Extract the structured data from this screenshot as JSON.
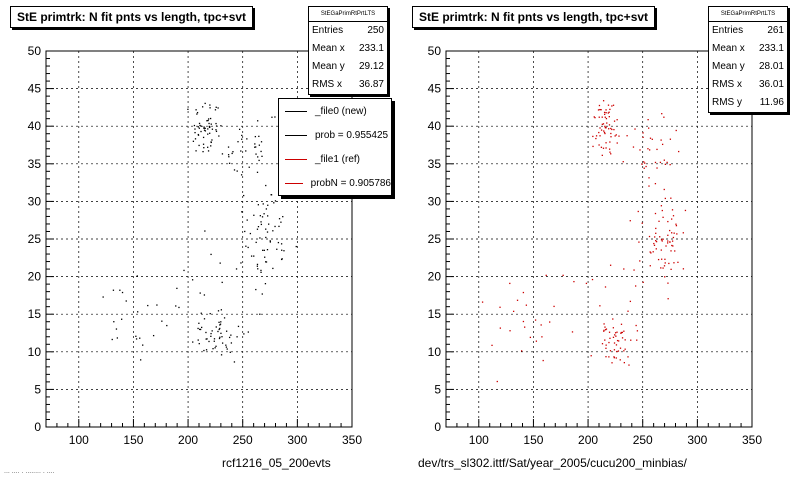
{
  "chart_data": [
    {
      "type": "scatter",
      "title": "StE primtrk: N fit pnts vs length, tpc+svt",
      "xlim": [
        70,
        350
      ],
      "ylim": [
        0,
        50
      ],
      "xticks": [
        100,
        150,
        200,
        250,
        300,
        350
      ],
      "yticks": [
        0,
        5,
        10,
        15,
        20,
        25,
        30,
        35,
        40,
        45,
        50
      ],
      "grid": true,
      "marker_color": "#000000",
      "stats": {
        "header": "StEGaPrimRtPrtLTS",
        "rows": [
          {
            "label": "Entries",
            "value": "250"
          },
          {
            "label": "Mean x",
            "value": "233.1"
          },
          {
            "label": "Mean y",
            "value": "29.12"
          },
          {
            "label": "RMS x",
            "value": "36.87"
          }
        ]
      },
      "legend": [
        {
          "label": "_file0 (new)",
          "color": "#000000"
        },
        {
          "label": "prob = 0.955425",
          "color": "#000000"
        },
        {
          "label": "_file1 (ref)",
          "color": "#cc0000"
        },
        {
          "label": "probN = 0.905786",
          "color": "#cc0000"
        }
      ],
      "caption": "rcf1216_05_200evts"
    },
    {
      "type": "scatter",
      "title": "StE primtrk: N fit pnts vs length, tpc+svt",
      "xlim": [
        70,
        350
      ],
      "ylim": [
        0,
        50
      ],
      "xticks": [
        100,
        150,
        200,
        250,
        300,
        350
      ],
      "yticks": [
        0,
        5,
        10,
        15,
        20,
        25,
        30,
        35,
        40,
        45,
        50
      ],
      "grid": true,
      "marker_color": "#cc0000",
      "stats": {
        "header": "StEGaPrimRtPrtLTS",
        "rows": [
          {
            "label": "Entries",
            "value": "261"
          },
          {
            "label": "Mean x",
            "value": "233.1"
          },
          {
            "label": "Mean y",
            "value": "28.01"
          },
          {
            "label": "RMS x",
            "value": "36.01"
          },
          {
            "label": "RMS y",
            "value": "11.96"
          }
        ]
      },
      "caption": "dev/trs_sl302.ittf/Sat/year_2005/cucu200_minbias/"
    }
  ],
  "footer_text": "... .... . ........ . ...."
}
